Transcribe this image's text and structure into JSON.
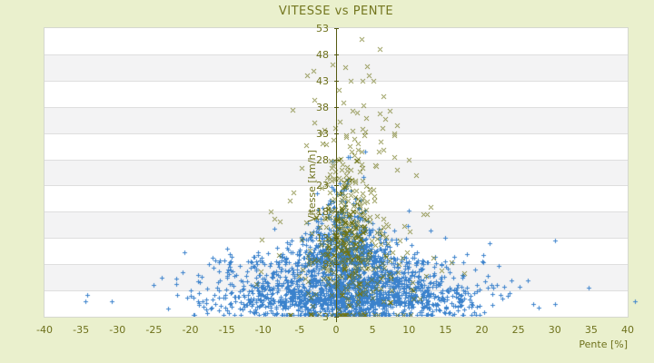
{
  "title": "VITESSE vs PENTE",
  "chart_data": {
    "type": "scatter",
    "title": "VITESSE vs PENTE",
    "xlabel": "Pente [%]",
    "ylabel": "Vitesse [km/h]",
    "xlim": [
      -40,
      40
    ],
    "ylim": [
      3,
      53
    ],
    "x_ticks": [
      -40,
      -35,
      -30,
      -25,
      -20,
      -15,
      -10,
      -5,
      0,
      5,
      10,
      15,
      20,
      25,
      30,
      35,
      40
    ],
    "y_ticks": [
      53,
      48,
      43,
      38,
      33,
      28,
      23,
      18,
      13,
      8,
      3
    ],
    "grid": "horizontal-bands",
    "legend": "none",
    "seed": 1337,
    "layout": {
      "n_bands": 11,
      "band_colors": [
        "#ffffff",
        "#f3f3f4"
      ],
      "grid_color": "#dedede",
      "axis_color": "#565a12",
      "text_color": "#6e711c",
      "title_color": "#73761f",
      "background": "#eaf0cd",
      "plot_bg": "#ffffff"
    },
    "series": [
      {
        "name": "vitesse-bleu",
        "marker": "plus",
        "color": "#3b82cc",
        "blobs": [
          {
            "n": 750,
            "p": 1.5,
            "sp": 3.5,
            "s": 8.0,
            "ss": 3.5
          },
          {
            "n": 550,
            "p": 2.0,
            "sp": 8.5,
            "s": 5.3,
            "ss": 1.3
          },
          {
            "n": 300,
            "p": 1.0,
            "sp": 9.0,
            "s": 4.5,
            "ss": 0.5
          },
          {
            "n": 200,
            "p": 9.0,
            "sp": 4.5,
            "s": 6.0,
            "ss": 1.8
          },
          {
            "n": 150,
            "p": -7.5,
            "sp": 4.5,
            "s": 6.5,
            "ss": 2.0
          },
          {
            "n": 150,
            "p": 0.8,
            "sp": 2.2,
            "s": 16.0,
            "ss": 4.5
          },
          {
            "n": 120,
            "p": 1.0,
            "sp": 13.0,
            "s": 6.5,
            "ss": 2.5
          },
          {
            "n": 80,
            "p": 14.0,
            "sp": 4.0,
            "s": 5.0,
            "ss": 1.2
          },
          {
            "n": 60,
            "p": -13.0,
            "sp": 3.5,
            "s": 5.5,
            "ss": 1.5
          }
        ],
        "outliers": [
          [
            -34.4,
            4.5
          ],
          [
            -30.8,
            4.5
          ],
          [
            -20,
            5.5
          ],
          [
            -19,
            7
          ],
          [
            -17.5,
            8
          ],
          [
            23.5,
            5
          ],
          [
            24,
            6.5
          ],
          [
            41,
            4.5
          ],
          [
            20,
            8.5
          ],
          [
            22,
            6
          ],
          [
            -25,
            6
          ],
          [
            18,
            10
          ],
          [
            -15,
            11
          ],
          [
            15,
            13
          ],
          [
            -16,
            6.5
          ],
          [
            21,
            12
          ]
        ]
      },
      {
        "name": "vitesse-olive",
        "marker": "x",
        "color": "#6f7518",
        "blobs": [
          {
            "n": 230,
            "p": 1.8,
            "sp": 1.8,
            "s": 14.0,
            "ss": 7.0
          },
          {
            "n": 130,
            "p": 1.5,
            "sp": 4.5,
            "s": 11.0,
            "ss": 5.0
          },
          {
            "n": 70,
            "p": 2.5,
            "sp": 3.0,
            "s": 30.0,
            "ss": 6.0
          },
          {
            "n": 60,
            "p": 3.0,
            "sp": 6.0,
            "s": 6.0,
            "ss": 2.0
          }
        ],
        "outliers": [
          [
            3.5,
            51
          ],
          [
            6,
            49
          ],
          [
            1.2,
            45.5
          ],
          [
            -0.5,
            46
          ],
          [
            4.5,
            44
          ],
          [
            -4,
            44
          ],
          [
            2,
            43
          ],
          [
            3.6,
            43
          ],
          [
            5.1,
            43
          ],
          [
            6.5,
            40
          ],
          [
            -6,
            37.5
          ],
          [
            11,
            25
          ],
          [
            13,
            19
          ],
          [
            -9,
            18
          ],
          [
            10,
            28
          ],
          [
            -3,
            35
          ],
          [
            8,
            33
          ],
          [
            12.5,
            17.5
          ]
        ]
      }
    ]
  }
}
